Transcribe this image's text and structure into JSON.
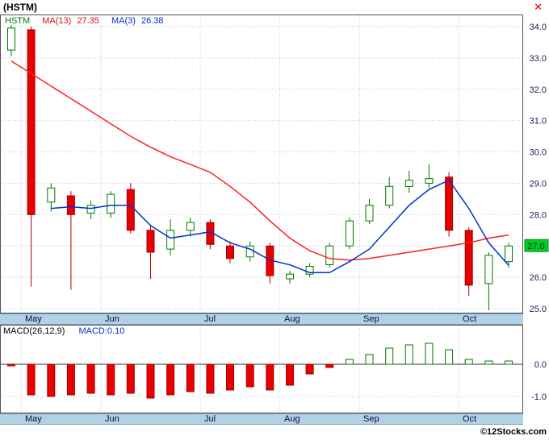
{
  "window": {
    "title": "(HSTM)",
    "close_glyph": "✕"
  },
  "legend": {
    "symbol": "HSTM",
    "ma13_label": "MA(13)",
    "ma13_value": "27.35",
    "ma3_label": "MA(3)",
    "ma3_value": "26.38"
  },
  "macd_header": {
    "label": "MACD(26,12,9)",
    "value": "MACD:0.10"
  },
  "footer": {
    "copyright": "©12Stocks.com"
  },
  "colors": {
    "up": "#ffffff",
    "up_border": "#007a00",
    "down": "#e60000",
    "down_border": "#aa0000",
    "ma13": "#ff2020",
    "ma3": "#0033cc",
    "band": "#b3d1e6",
    "price_flag_bg": "#00cc2a",
    "grid": "#c9c9c9",
    "axis_text": "#10234d"
  },
  "chart_data": [
    {
      "type": "candlestick",
      "title": "(HSTM)",
      "timeframe": "weekly",
      "months": [
        "May",
        "Jun",
        "Jul",
        "Aug",
        "Sep",
        "Oct"
      ],
      "month_start_index": [
        1,
        5,
        10,
        14,
        18,
        23
      ],
      "y_ticks": [
        34,
        33,
        32,
        31,
        30,
        29,
        28,
        26,
        25
      ],
      "ylim": [
        24.87,
        34.39
      ],
      "last_price": 27.0,
      "last_price_label": "27.0",
      "candles": [
        [
          33.25,
          34.05,
          33.05,
          33.95
        ],
        [
          33.9,
          34.0,
          25.7,
          28.0
        ],
        [
          28.4,
          29.0,
          28.1,
          28.85
        ],
        [
          28.6,
          28.75,
          25.6,
          28.0
        ],
        [
          28.05,
          28.45,
          27.85,
          28.3
        ],
        [
          28.05,
          28.75,
          27.9,
          28.65
        ],
        [
          28.8,
          29.0,
          27.4,
          27.5
        ],
        [
          27.5,
          27.65,
          25.95,
          26.8
        ],
        [
          26.9,
          27.85,
          26.7,
          27.5
        ],
        [
          27.5,
          27.9,
          27.3,
          27.75
        ],
        [
          27.75,
          27.85,
          26.9,
          27.05
        ],
        [
          27.0,
          27.15,
          26.45,
          26.6
        ],
        [
          26.65,
          27.15,
          26.5,
          27.0
        ],
        [
          27.0,
          27.1,
          25.8,
          26.05
        ],
        [
          25.95,
          26.2,
          25.8,
          26.1
        ],
        [
          26.1,
          26.45,
          26.0,
          26.35
        ],
        [
          26.4,
          27.1,
          26.3,
          27.0
        ],
        [
          27.0,
          27.9,
          26.9,
          27.8
        ],
        [
          27.8,
          28.5,
          27.7,
          28.3
        ],
        [
          28.3,
          29.2,
          28.2,
          28.9
        ],
        [
          28.9,
          29.4,
          28.7,
          29.1
        ],
        [
          29.0,
          29.6,
          28.85,
          29.15
        ],
        [
          29.2,
          29.35,
          27.3,
          27.5
        ],
        [
          27.5,
          27.6,
          25.4,
          25.75
        ],
        [
          25.8,
          26.8,
          24.95,
          26.7
        ],
        [
          26.5,
          27.1,
          26.3,
          27.0
        ]
      ],
      "series": [
        {
          "name": "MA(13)",
          "last": 27.35,
          "color_key": "ma13",
          "values": [
            32.9,
            32.5,
            32.1,
            31.7,
            31.3,
            30.9,
            30.5,
            30.15,
            29.85,
            29.6,
            29.35,
            28.9,
            28.4,
            27.8,
            27.25,
            26.85,
            26.6,
            26.55,
            26.6,
            26.7,
            26.8,
            26.9,
            27.0,
            27.1,
            27.25,
            27.35
          ]
        },
        {
          "name": "MA(3)",
          "last": 26.38,
          "color_key": "ma3",
          "values": [
            null,
            null,
            28.2,
            28.25,
            28.2,
            28.3,
            28.3,
            27.65,
            27.25,
            27.35,
            27.45,
            27.1,
            26.9,
            26.55,
            26.4,
            26.15,
            26.15,
            26.5,
            26.9,
            27.6,
            28.3,
            28.8,
            29.1,
            28.2,
            27.1,
            26.38
          ]
        }
      ]
    },
    {
      "type": "bar",
      "title": "MACD(26,12,9)",
      "last": 0.1,
      "y_ticks": [
        0,
        -1
      ],
      "ylim": [
        -1.53,
        1.23
      ],
      "values": [
        -0.05,
        -0.95,
        -1.0,
        -0.95,
        -0.9,
        -0.95,
        -0.9,
        -1.05,
        -0.95,
        -0.85,
        -0.9,
        -0.8,
        -0.7,
        -0.8,
        -0.65,
        -0.3,
        -0.1,
        0.15,
        0.3,
        0.5,
        0.6,
        0.65,
        0.45,
        0.15,
        0.1,
        0.1
      ]
    }
  ]
}
